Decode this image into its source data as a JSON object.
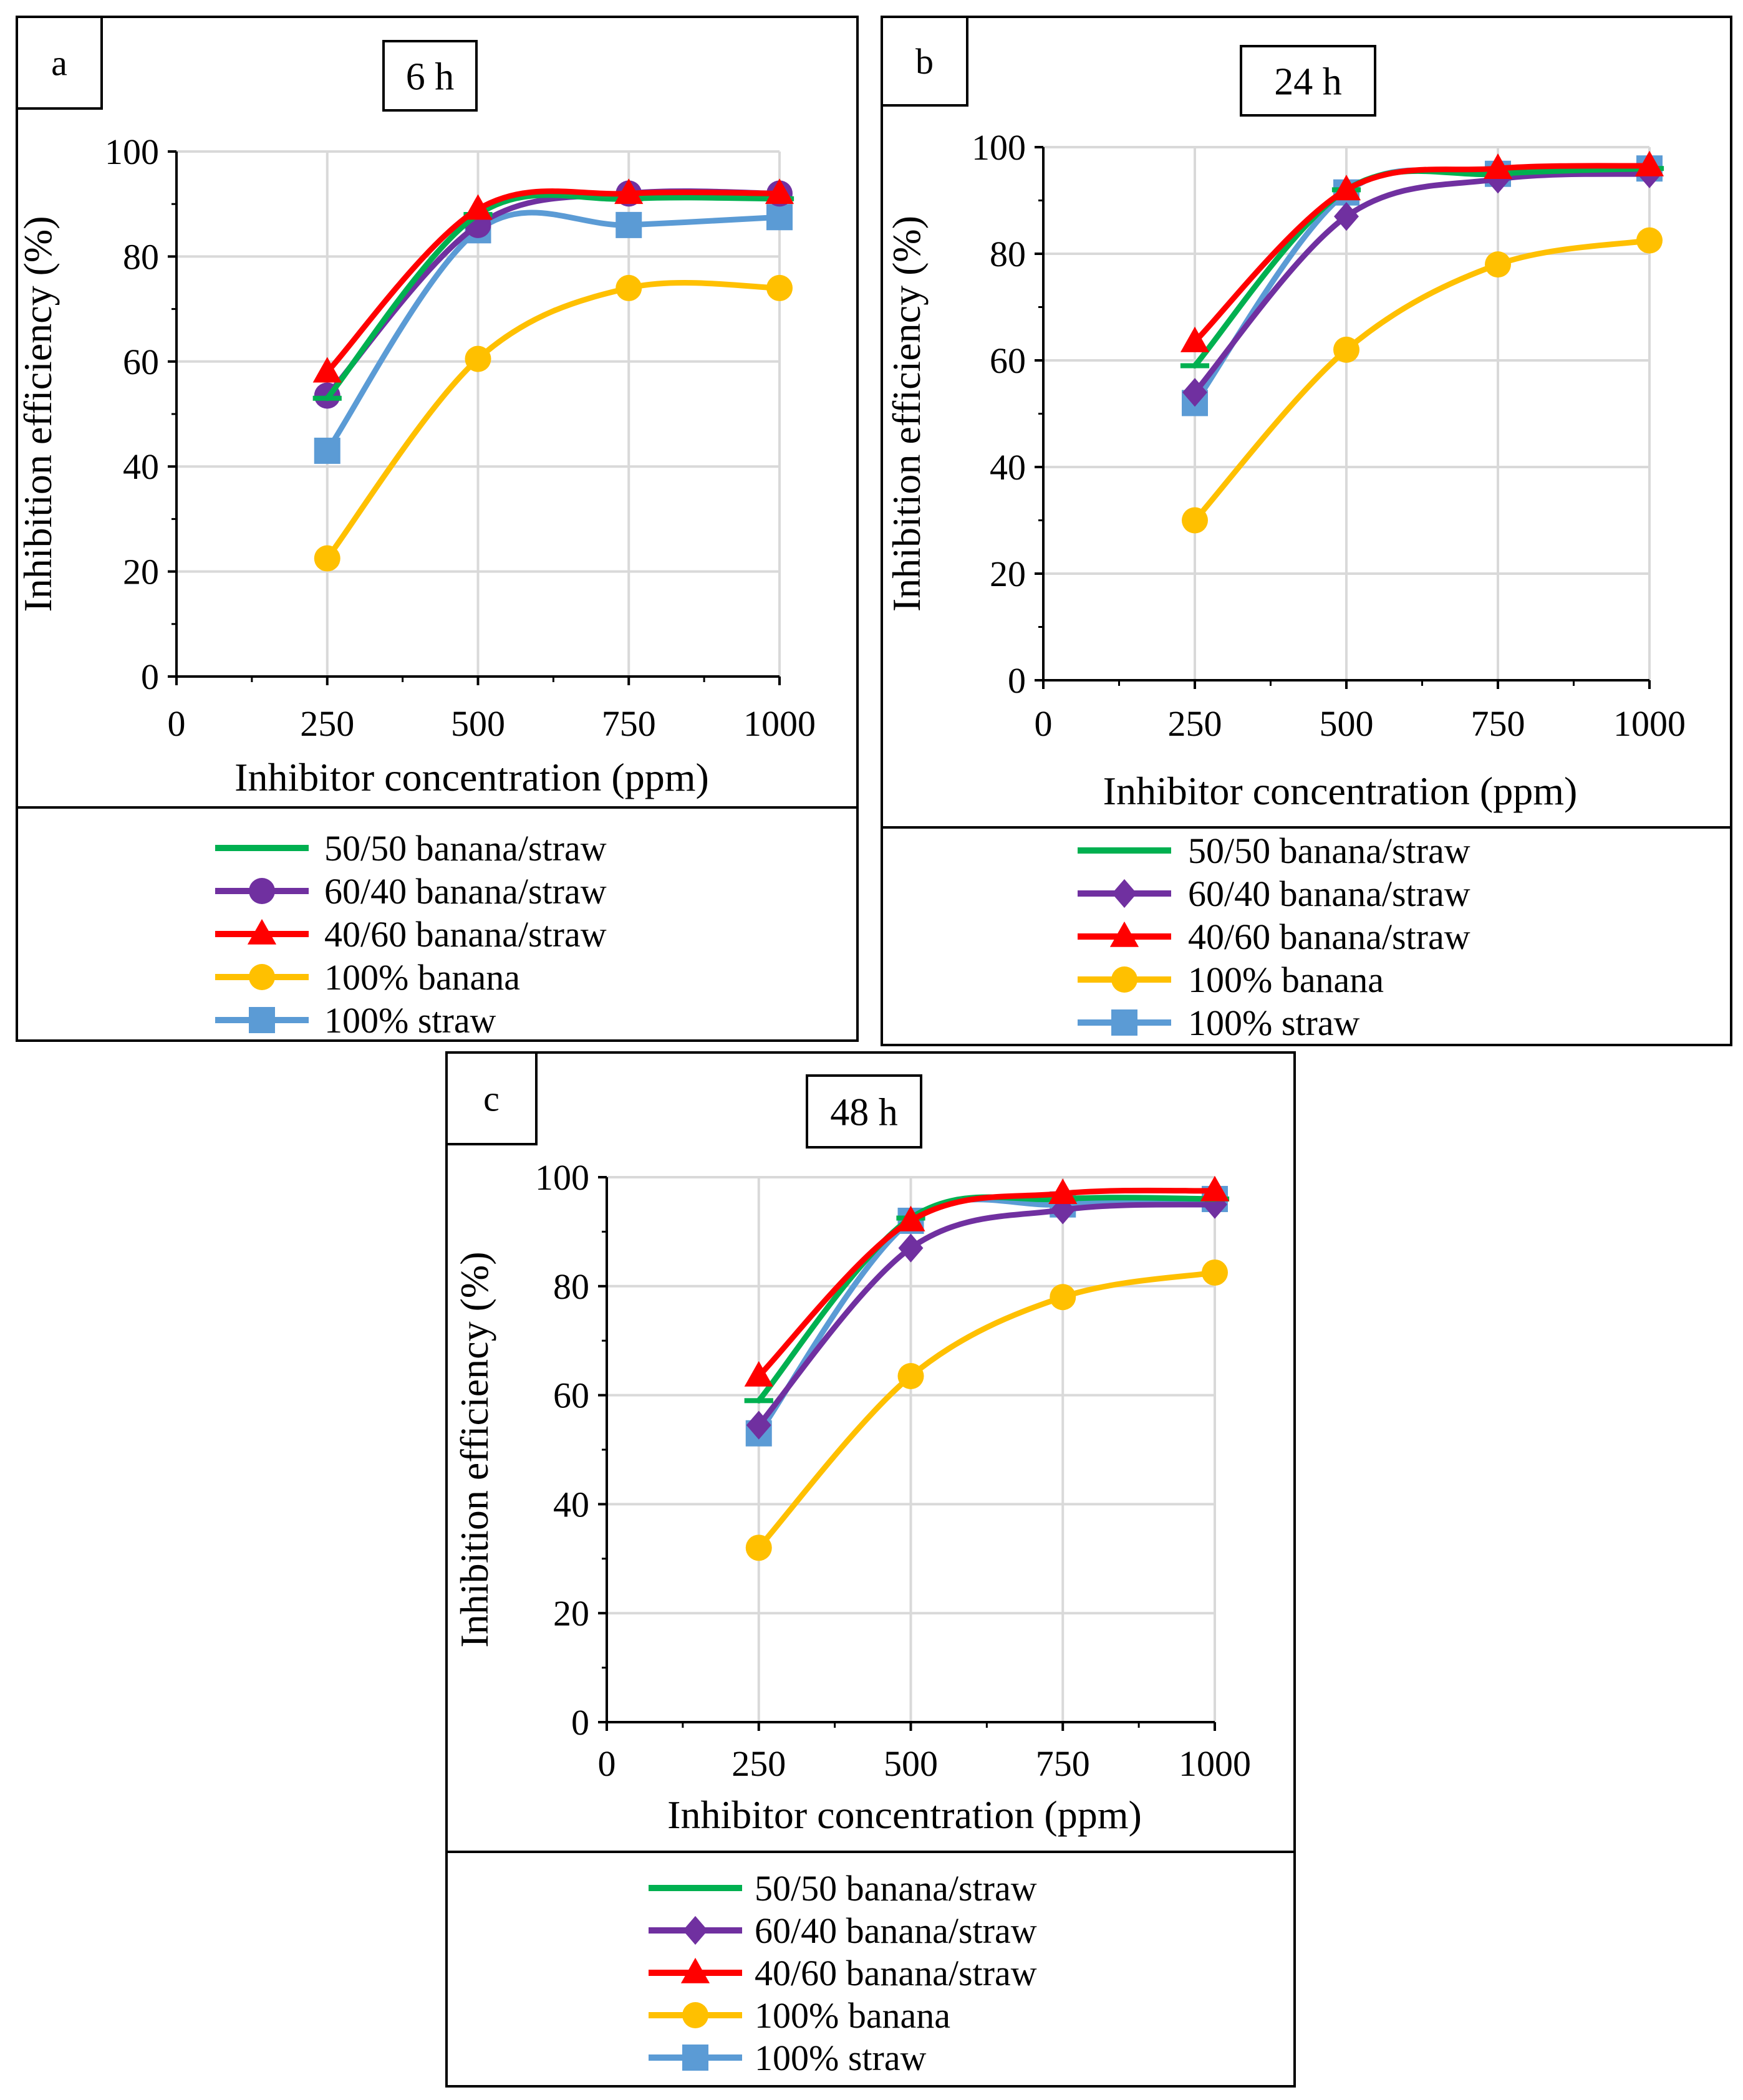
{
  "chart_data": [
    {
      "panel_label": "a",
      "title": "6 h",
      "type": "line",
      "xlabel": "Inhibitor concentration (ppm)",
      "ylabel": "Inhibition efficiency (%)",
      "xlim": [
        0,
        1000
      ],
      "ylim": [
        0,
        100
      ],
      "xticks": [
        0,
        250,
        500,
        750,
        1000
      ],
      "yticks": [
        0,
        20,
        40,
        60,
        80,
        100
      ],
      "grid": true,
      "x": [
        250,
        500,
        750,
        1000
      ],
      "series": [
        {
          "name": "50/50 banana/straw",
          "color": "#00b050",
          "marker": "dash",
          "values": [
            53,
            88,
            91,
            91
          ]
        },
        {
          "name": "60/40 banana/straw",
          "color": "#7030a0",
          "marker": "circle",
          "values": [
            53.5,
            86,
            92,
            92
          ]
        },
        {
          "name": "40/60 banana/straw",
          "color": "#ff0000",
          "marker": "triangle",
          "values": [
            58,
            89,
            92,
            92
          ]
        },
        {
          "name": "100% banana",
          "color": "#ffc000",
          "marker": "circle",
          "values": [
            22.5,
            60.5,
            74,
            74
          ]
        },
        {
          "name": "100% straw",
          "color": "#5b9bd5",
          "marker": "square",
          "values": [
            43,
            85,
            86,
            87.5
          ]
        }
      ]
    },
    {
      "panel_label": "b",
      "title": "24 h",
      "type": "line",
      "xlabel": "Inhibitor concentration (ppm)",
      "ylabel": "Inhibition efficiency (%)",
      "xlim": [
        0,
        1000
      ],
      "ylim": [
        0,
        100
      ],
      "xticks": [
        0,
        250,
        500,
        750,
        1000
      ],
      "yticks": [
        0,
        20,
        40,
        60,
        80,
        100
      ],
      "grid": true,
      "x": [
        250,
        500,
        750,
        1000
      ],
      "series": [
        {
          "name": "50/50 banana/straw",
          "color": "#00b050",
          "marker": "dash",
          "values": [
            59,
            92,
            95,
            96
          ]
        },
        {
          "name": "60/40 banana/straw",
          "color": "#7030a0",
          "marker": "diamond",
          "values": [
            54,
            87,
            94,
            95
          ]
        },
        {
          "name": "40/60 banana/straw",
          "color": "#ff0000",
          "marker": "triangle",
          "values": [
            63.5,
            92,
            96,
            96.5
          ]
        },
        {
          "name": "100% banana",
          "color": "#ffc000",
          "marker": "circle",
          "values": [
            30,
            62,
            78,
            82.5
          ]
        },
        {
          "name": "100% straw",
          "color": "#5b9bd5",
          "marker": "square",
          "values": [
            52,
            91.5,
            95,
            96
          ]
        }
      ]
    },
    {
      "panel_label": "c",
      "title": "48 h",
      "type": "line",
      "xlabel": "Inhibitor concentration (ppm)",
      "ylabel": "Inhibition efficiency (%)",
      "xlim": [
        0,
        1000
      ],
      "ylim": [
        0,
        100
      ],
      "xticks": [
        0,
        250,
        500,
        750,
        1000
      ],
      "yticks": [
        0,
        20,
        40,
        60,
        80,
        100
      ],
      "grid": true,
      "x": [
        250,
        500,
        750,
        1000
      ],
      "series": [
        {
          "name": "50/50 banana/straw",
          "color": "#00b050",
          "marker": "dash",
          "values": [
            59,
            92.5,
            96,
            96
          ]
        },
        {
          "name": "60/40 banana/straw",
          "color": "#7030a0",
          "marker": "diamond",
          "values": [
            54.5,
            87,
            94,
            95
          ]
        },
        {
          "name": "40/60 banana/straw",
          "color": "#ff0000",
          "marker": "triangle",
          "values": [
            63.5,
            92,
            97,
            97.5
          ]
        },
        {
          "name": "100% banana",
          "color": "#ffc000",
          "marker": "circle",
          "values": [
            32,
            63.5,
            78,
            82.5
          ]
        },
        {
          "name": "100% straw",
          "color": "#5b9bd5",
          "marker": "square",
          "values": [
            53,
            92,
            95,
            96
          ]
        }
      ]
    }
  ]
}
